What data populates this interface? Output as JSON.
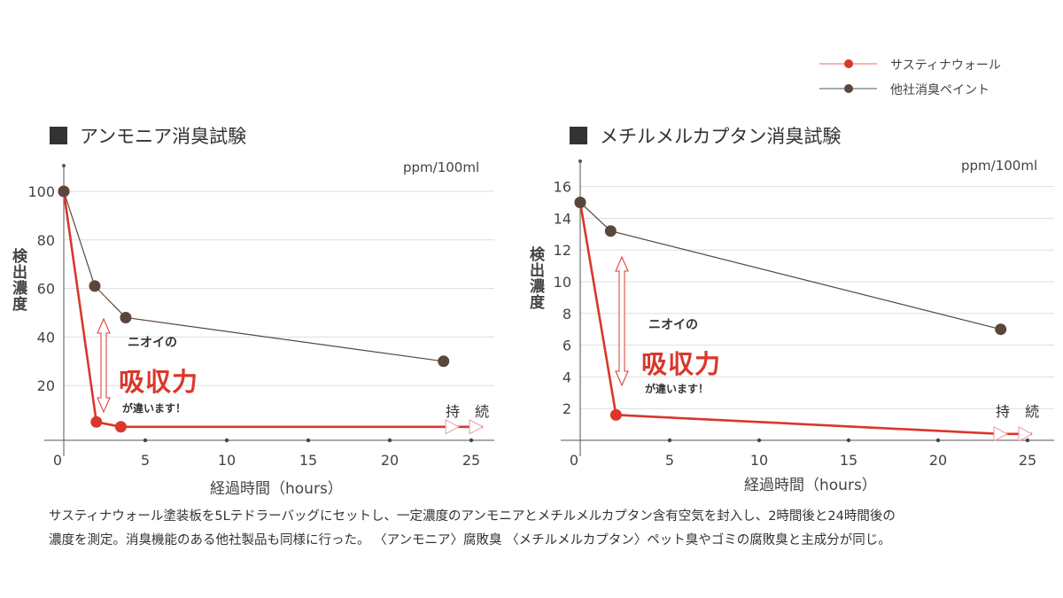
{
  "legend": [
    {
      "label": "サスティナウォール",
      "color": "#d9372b"
    },
    {
      "label": "他社消臭ペイント",
      "color": "#5a463c"
    }
  ],
  "annotation": {
    "line1": "ニオイの",
    "line2": "吸収力",
    "line3": "が違います！",
    "continue": "持 続"
  },
  "chart_data": [
    {
      "type": "line",
      "title": "アンモニア消臭試験",
      "unit": "ppm/100ml",
      "ylabel": "検出濃度",
      "xlabel": "経過時間（hours）",
      "xlim": [
        0,
        25
      ],
      "ylim": [
        0,
        100
      ],
      "xticks": [
        "0",
        "5",
        "10",
        "15",
        "20",
        "25"
      ],
      "yticks": [
        "20",
        "40",
        "60",
        "80",
        "100"
      ],
      "grid": true,
      "legend_position": "top-right",
      "series": [
        {
          "name": "サスティナウォール",
          "x": [
            0,
            2,
            3.5
          ],
          "y": [
            100,
            5,
            3
          ],
          "continues": true
        },
        {
          "name": "他社消臭ペイント",
          "x": [
            0,
            1.9,
            3.8,
            23.3
          ],
          "y": [
            100,
            61,
            48,
            30
          ]
        }
      ]
    },
    {
      "type": "line",
      "title": "メチルメルカプタン消臭試験",
      "unit": "ppm/100ml",
      "ylabel": "検出濃度",
      "xlabel": "経過時間（hours）",
      "xlim": [
        0,
        25
      ],
      "ylim": [
        0,
        16
      ],
      "xticks": [
        "0",
        "5",
        "10",
        "15",
        "20",
        "25"
      ],
      "yticks": [
        "2",
        "4",
        "6",
        "8",
        "10",
        "12",
        "14",
        "16"
      ],
      "grid": true,
      "legend_position": "top-right",
      "series": [
        {
          "name": "サスティナウォール",
          "x": [
            0,
            2,
            23.5
          ],
          "y": [
            15,
            1.6,
            0.4
          ],
          "continues": true
        },
        {
          "name": "他社消臭ペイント",
          "x": [
            0,
            1.7,
            23.5
          ],
          "y": [
            15,
            13.2,
            7.0
          ]
        }
      ]
    }
  ],
  "caption": {
    "line1": "サスティナウォール塗装板を5Lテドラーバッグにセットし、一定濃度のアンモニアとメチルメルカプタン含有空気を封入し、2時間後と24時間後の",
    "line2": "濃度を測定。消臭機能のある他社製品も同様に行った。 〈アンモニア〉腐敗臭 〈メチルメルカプタン〉ペット臭やゴミの腐敗臭と主成分が同じ。"
  }
}
